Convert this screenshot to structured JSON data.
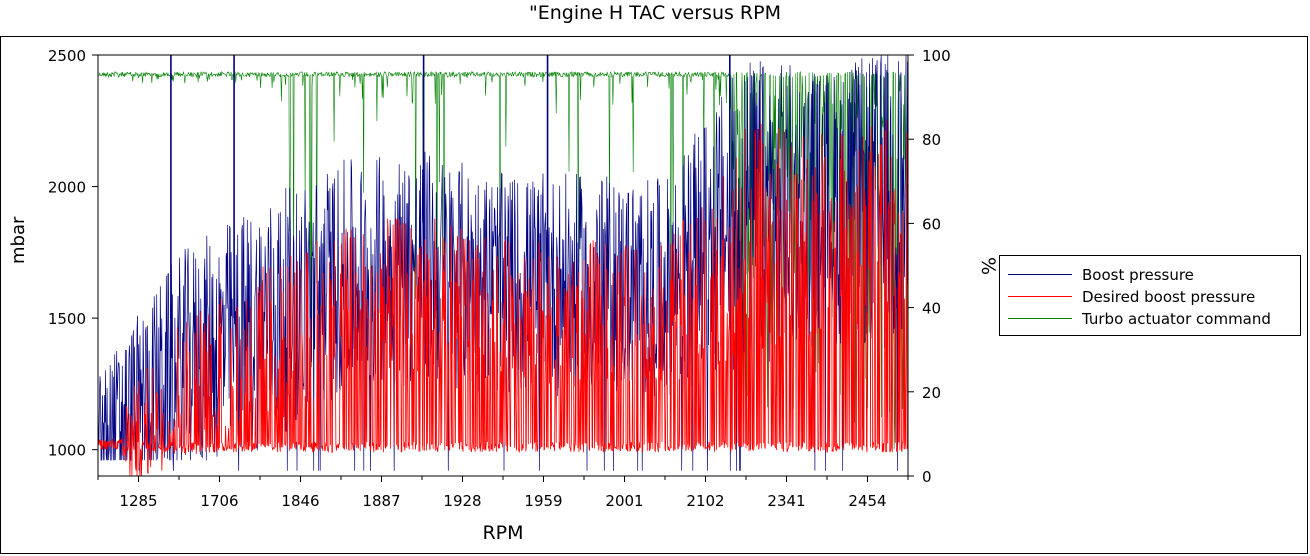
{
  "chart_data": {
    "type": "line",
    "title": "\"Engine H TAC versus RPM",
    "xlabel": "RPM",
    "ylabel": "mbar",
    "y2label": "%",
    "x_tick_labels": [
      "1285",
      "1706",
      "1846",
      "1887",
      "1928",
      "1959",
      "2001",
      "2102",
      "2341",
      "2454"
    ],
    "ylim": [
      900,
      2500
    ],
    "y_ticks": [
      1000,
      1500,
      2000,
      2500
    ],
    "y2lim": [
      0,
      100
    ],
    "y2_ticks": [
      0,
      20,
      40,
      60,
      80,
      100
    ],
    "grid": false,
    "legend_position": "right",
    "series": [
      {
        "name": "Boost pressure",
        "axis": "left",
        "color": "#000080",
        "x_segments": [
          0,
          0.1,
          0.2,
          0.3,
          0.4,
          0.5,
          0.6,
          0.7,
          0.8,
          0.9,
          1.0
        ],
        "baseline_mbar_by_segment": [
          1010,
          1150,
          1250,
          1450,
          1500,
          1450,
          1450,
          1450,
          1550,
          1650,
          1600
        ],
        "spikes_to_top_at_fraction": [
          0.09,
          0.168,
          0.402,
          0.555,
          0.78
        ]
      },
      {
        "name": "Desired boost pressure",
        "axis": "left",
        "color": "#ff0000",
        "x_segments": [
          0,
          0.1,
          0.2,
          0.3,
          0.4,
          0.5,
          0.6,
          0.7,
          0.8,
          0.9,
          1.0
        ],
        "baseline_mbar_by_segment": [
          1010,
          1150,
          1250,
          1450,
          1500,
          1450,
          1450,
          1450,
          1550,
          1650,
          1600
        ],
        "upper_envelope_mbar_by_segment": [
          1040,
          1500,
          1700,
          1850,
          1900,
          1800,
          1800,
          1780,
          2250,
          2200,
          2300
        ]
      },
      {
        "name": "Turbo actuator command",
        "axis": "right",
        "color": "#008000",
        "typical_percent": 96,
        "dense_drop_region_fraction": [
          0.78,
          1.0
        ]
      }
    ]
  },
  "legend": {
    "boost": "Boost pressure",
    "desired": "Desired boost pressure",
    "turbo": "Turbo actuator command"
  }
}
